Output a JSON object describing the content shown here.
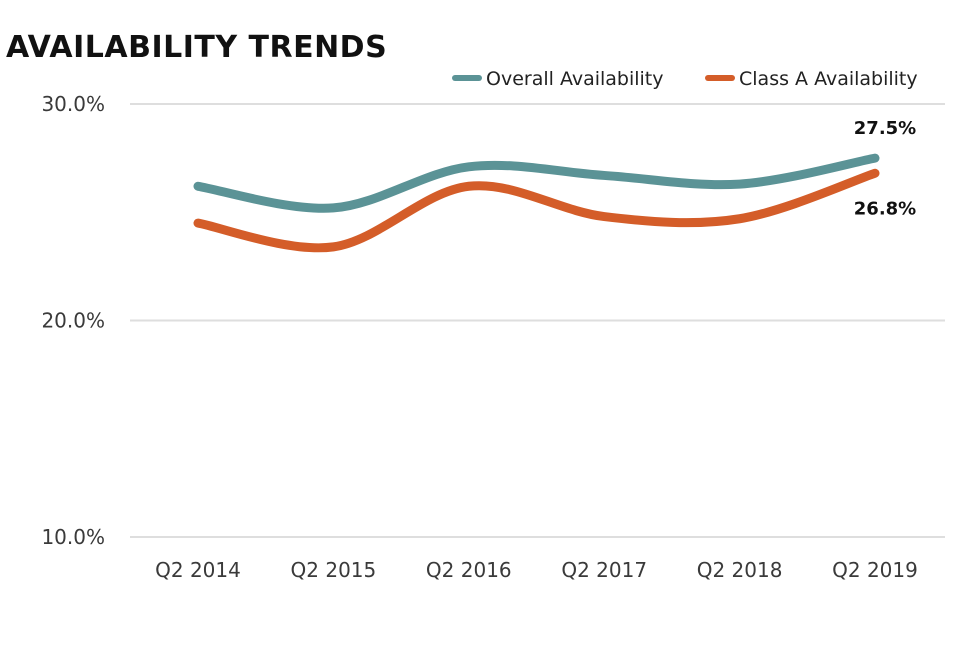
{
  "chart_data": {
    "type": "line",
    "title": "AVAILABILITY TRENDS",
    "categories": [
      "Q2 2014",
      "Q2 2015",
      "Q2 2016",
      "Q2 2017",
      "Q2 2018",
      "Q2 2019"
    ],
    "series": [
      {
        "name": "Overall Availability",
        "color": "#5b9396",
        "values": [
          26.2,
          25.2,
          27.1,
          26.7,
          26.3,
          27.5
        ]
      },
      {
        "name": "Class A Availability",
        "color": "#d45d29",
        "values": [
          24.5,
          23.4,
          26.2,
          24.8,
          24.7,
          26.8
        ]
      }
    ],
    "data_labels": [
      "27.5%",
      "26.8%"
    ],
    "y_ticks": [
      "30.0%",
      "20.0%",
      "10.0%"
    ],
    "ylim": [
      10,
      30
    ],
    "xlabel": "",
    "ylabel": "",
    "grid": true,
    "legend_position": "top-right"
  }
}
